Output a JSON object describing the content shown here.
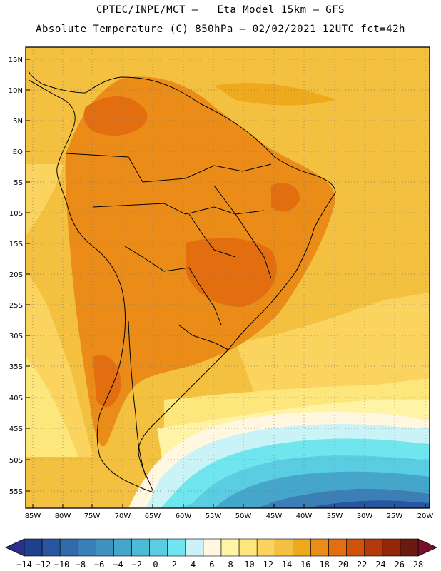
{
  "header": {
    "line1": "CPTEC/INPE/MCT –   Eta Model 15km – GFS",
    "line2": "Absolute Temperature (C) 850hPa – 02/02/2021 12UTC fct=42h"
  },
  "lat_labels": [
    "15N",
    "10N",
    "5N",
    "EQ",
    "5S",
    "10S",
    "15S",
    "20S",
    "25S",
    "30S",
    "35S",
    "40S",
    "45S",
    "50S",
    "55S"
  ],
  "lon_labels": [
    "85W",
    "80W",
    "75W",
    "70W",
    "65W",
    "60W",
    "55W",
    "50W",
    "45W",
    "40W",
    "35W",
    "30W",
    "25W",
    "20W"
  ],
  "colorbar": {
    "labels": [
      "−14",
      "−12",
      "−10",
      "−8",
      "−6",
      "−4",
      "−2",
      "0",
      "2",
      "4",
      "6",
      "8",
      "10",
      "12",
      "14",
      "16",
      "18",
      "20",
      "22",
      "24",
      "26",
      "28"
    ],
    "colors": [
      "#1f3f8f",
      "#2a55a0",
      "#336aab",
      "#3a7fb6",
      "#3f92c0",
      "#45a6cb",
      "#4dbad6",
      "#5acde2",
      "#6fe6ee",
      "#c9f3f6",
      "#fff7e0",
      "#fff3a6",
      "#fde67b",
      "#fad45e",
      "#f4c03f",
      "#efa91c",
      "#ea8c17",
      "#e36e10",
      "#d0530c",
      "#b53a0a",
      "#942709",
      "#6b1a12"
    ],
    "min_arrow": "#2c2e8c",
    "max_arrow": "#7a0f2b"
  }
}
